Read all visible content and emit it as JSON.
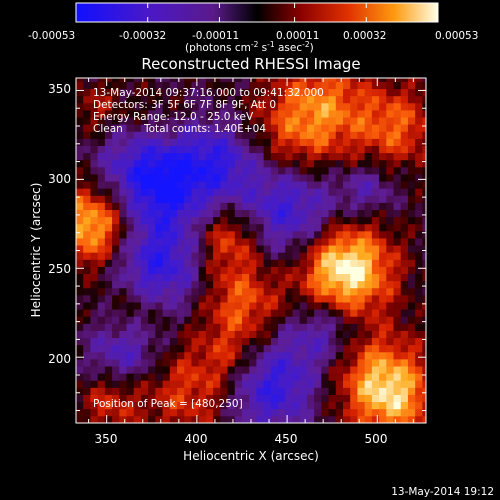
{
  "colorbar": {
    "ticks": [
      "-0.00053",
      "-0.00032",
      "-0.00011",
      "0.00011",
      "0.00032",
      "0.00053"
    ],
    "units_line": "(photons cm",
    "units_sup1": "-2",
    "units_mid": " s",
    "units_sup2": "-1",
    "units_end": " asec",
    "units_sup3": "-2",
    "units_close": ")"
  },
  "plot": {
    "title": "Reconstructed RHESSI Image",
    "xlabel": "Heliocentric X (arcsec)",
    "ylabel": "Heliocentric Y (arcsec)",
    "x_ticks": [
      "350",
      "400",
      "450",
      "500"
    ],
    "y_ticks": [
      "350",
      "300",
      "250",
      "200"
    ],
    "annotations": {
      "time_range": "13-May-2014 09:37:16.000 to 09:41:32.000",
      "detectors": "Detectors: 3F 5F 6F 7F 8F 9F, Att 0",
      "energy": "Energy Range: 12.0 - 25.0 keV",
      "method": "Clean",
      "counts": "Total counts: 1.40E+04",
      "peak": "Position of Peak = [480,250]"
    }
  },
  "footer": {
    "timestamp": "13-May-2014 19:12"
  },
  "chart_data": {
    "type": "heatmap",
    "title": "Reconstructed RHESSI Image",
    "xlabel": "Heliocentric X (arcsec)",
    "ylabel": "Heliocentric Y (arcsec)",
    "xlim": [
      333,
      527
    ],
    "ylim": [
      163,
      357
    ],
    "x_ticks": [
      350,
      400,
      450,
      500
    ],
    "y_ticks": [
      200,
      250,
      300,
      350
    ],
    "colorbar_range": [
      -0.00053,
      0.00053
    ],
    "colorbar_ticks": [
      -0.00053,
      -0.00032,
      -0.00011,
      0.00011,
      0.00032,
      0.00053
    ],
    "peak_position": [
      480,
      250
    ]
  }
}
